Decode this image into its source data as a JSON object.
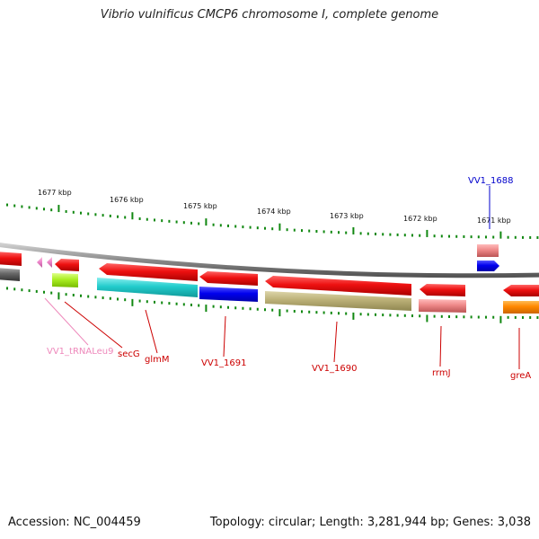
{
  "title": "Vibrio vulnificus CMCP6 chromosome I, complete genome",
  "footer": {
    "accession": "Accession: NC_004459",
    "stats": "Topology: circular; Length: 3,281,944 bp; Genes: 3,038"
  },
  "scale_labels": [
    "1677 kbp",
    "1676 kbp",
    "1675 kbp",
    "1674 kbp",
    "1673 kbp",
    "1672 kbp",
    "1671 kbp"
  ],
  "gene_labels": [
    {
      "text": "VV1_1688",
      "color": "#0000cc"
    },
    {
      "text": "VV1_tRNALeu9",
      "color": "#ee88bb"
    },
    {
      "text": "secG",
      "color": "#cc0000"
    },
    {
      "text": "glmM",
      "color": "#cc0000"
    },
    {
      "text": "VV1_1691",
      "color": "#cc0000"
    },
    {
      "text": "VV1_1690",
      "color": "#cc0000"
    },
    {
      "text": "rrmJ",
      "color": "#cc0000"
    },
    {
      "text": "greA",
      "color": "#cc0000"
    }
  ],
  "colors": {
    "backbone": "#8a8a8a",
    "ticks": "#118811",
    "strand_red": "#ee1111",
    "blue": "#0000ee",
    "cyan": "#22cccc",
    "olive": "#bbb077",
    "salmon": "#ee8888",
    "orange": "#ff8800",
    "lime": "#aaee22",
    "pink": "#ee88cc",
    "grey": "#666666"
  }
}
